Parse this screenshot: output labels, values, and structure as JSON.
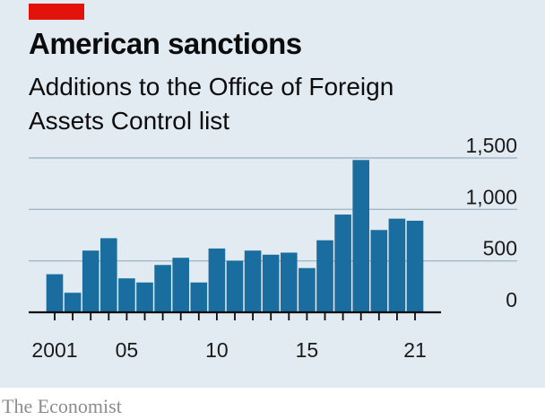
{
  "header": {
    "title": "American sanctions",
    "subtitle": "Additions to the Office of Foreign Assets Control list"
  },
  "footer": {
    "source": "The Economist"
  },
  "colors": {
    "bar": "#1a6e9f",
    "accent": "#e3120b",
    "background": "#e2ebf2",
    "gridline": "#a5b8c7"
  },
  "chart_data": {
    "type": "bar",
    "title": "American sanctions",
    "subtitle": "Additions to the Office of Foreign Assets Control list",
    "xlabel": "",
    "ylabel": "",
    "categories": [
      "2001",
      "2002",
      "2003",
      "2004",
      "2005",
      "2006",
      "2007",
      "2008",
      "2009",
      "2010",
      "2011",
      "2012",
      "2013",
      "2014",
      "2015",
      "2016",
      "2017",
      "2018",
      "2019",
      "2020",
      "2021"
    ],
    "values": [
      370,
      190,
      600,
      720,
      330,
      290,
      460,
      530,
      290,
      620,
      500,
      600,
      560,
      580,
      430,
      700,
      950,
      1480,
      800,
      910,
      890
    ],
    "ylim": [
      0,
      1500
    ],
    "yticks": [
      0,
      500,
      1000,
      1500
    ],
    "ytick_labels": [
      "0",
      "500",
      "1,000",
      "1,500"
    ],
    "xtick_labels": [
      {
        "category": "2001",
        "label": "2001"
      },
      {
        "category": "2005",
        "label": "05"
      },
      {
        "category": "2010",
        "label": "10"
      },
      {
        "category": "2015",
        "label": "15"
      },
      {
        "category": "2021",
        "label": "21"
      }
    ],
    "grid": true
  }
}
